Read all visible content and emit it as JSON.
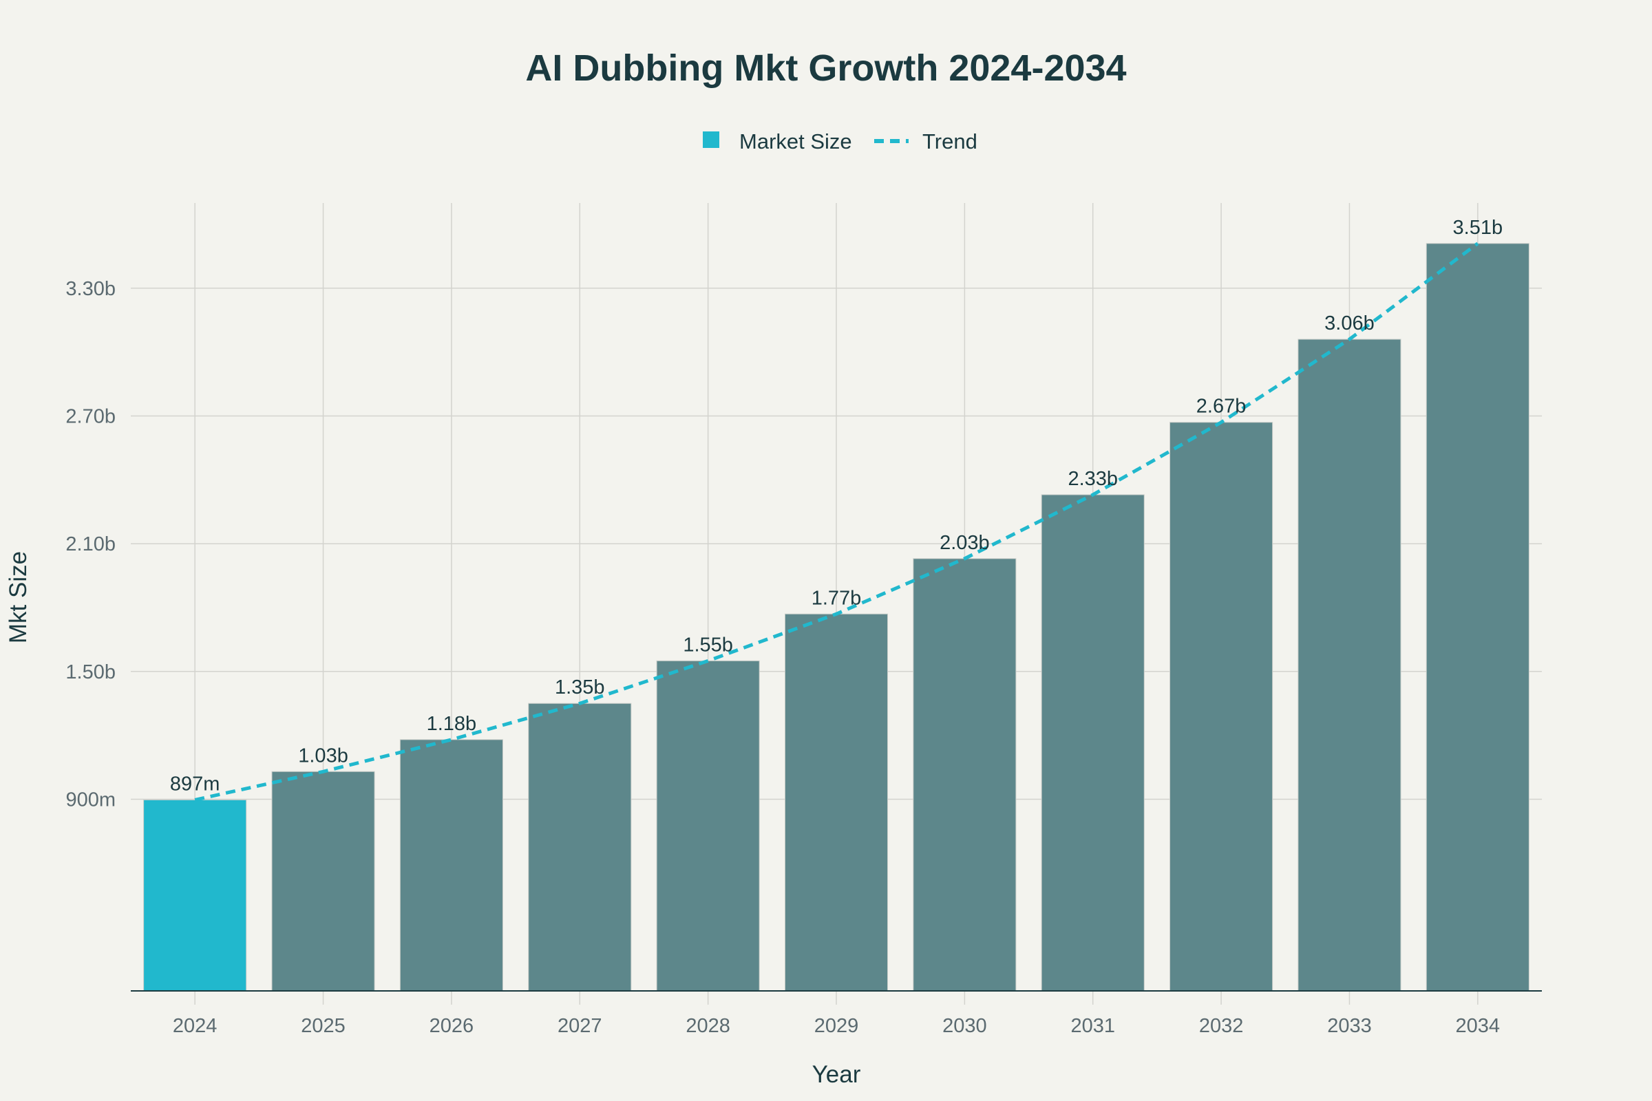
{
  "chart_data": {
    "type": "bar",
    "title": "AI Dubbing Mkt Growth 2024-2034",
    "xlabel": "Year",
    "ylabel": "Mkt Size",
    "categories": [
      "2024",
      "2025",
      "2026",
      "2027",
      "2028",
      "2029",
      "2030",
      "2031",
      "2032",
      "2033",
      "2034"
    ],
    "series": [
      {
        "name": "Market Size",
        "kind": "bar",
        "values": [
          0.897,
          1.03,
          1.18,
          1.35,
          1.55,
          1.77,
          2.03,
          2.33,
          2.67,
          3.06,
          3.51
        ],
        "labels": [
          "897m",
          "1.03b",
          "1.18b",
          "1.35b",
          "1.55b",
          "1.77b",
          "2.03b",
          "2.33b",
          "2.67b",
          "3.06b",
          "3.51b"
        ]
      },
      {
        "name": "Trend",
        "kind": "line",
        "dash": "dashed",
        "values": [
          0.897,
          1.03,
          1.18,
          1.35,
          1.55,
          1.77,
          2.03,
          2.33,
          2.67,
          3.06,
          3.51
        ]
      }
    ],
    "value_unit": "billions",
    "ylim": [
      0,
      3.7
    ],
    "yticks": [
      0.9,
      1.5,
      2.1,
      2.7,
      3.3
    ],
    "ytick_labels": [
      "900m",
      "1.50b",
      "2.10b",
      "2.70b",
      "3.30b"
    ],
    "grid": true,
    "legend_position": "top-center",
    "colors": {
      "bar": "#5d878b",
      "highlight_bar": "#21b8cd",
      "trend": "#21b8cd",
      "background": "#f3f3ee",
      "text": "#1b3a40"
    },
    "highlighted_category": "2024"
  }
}
